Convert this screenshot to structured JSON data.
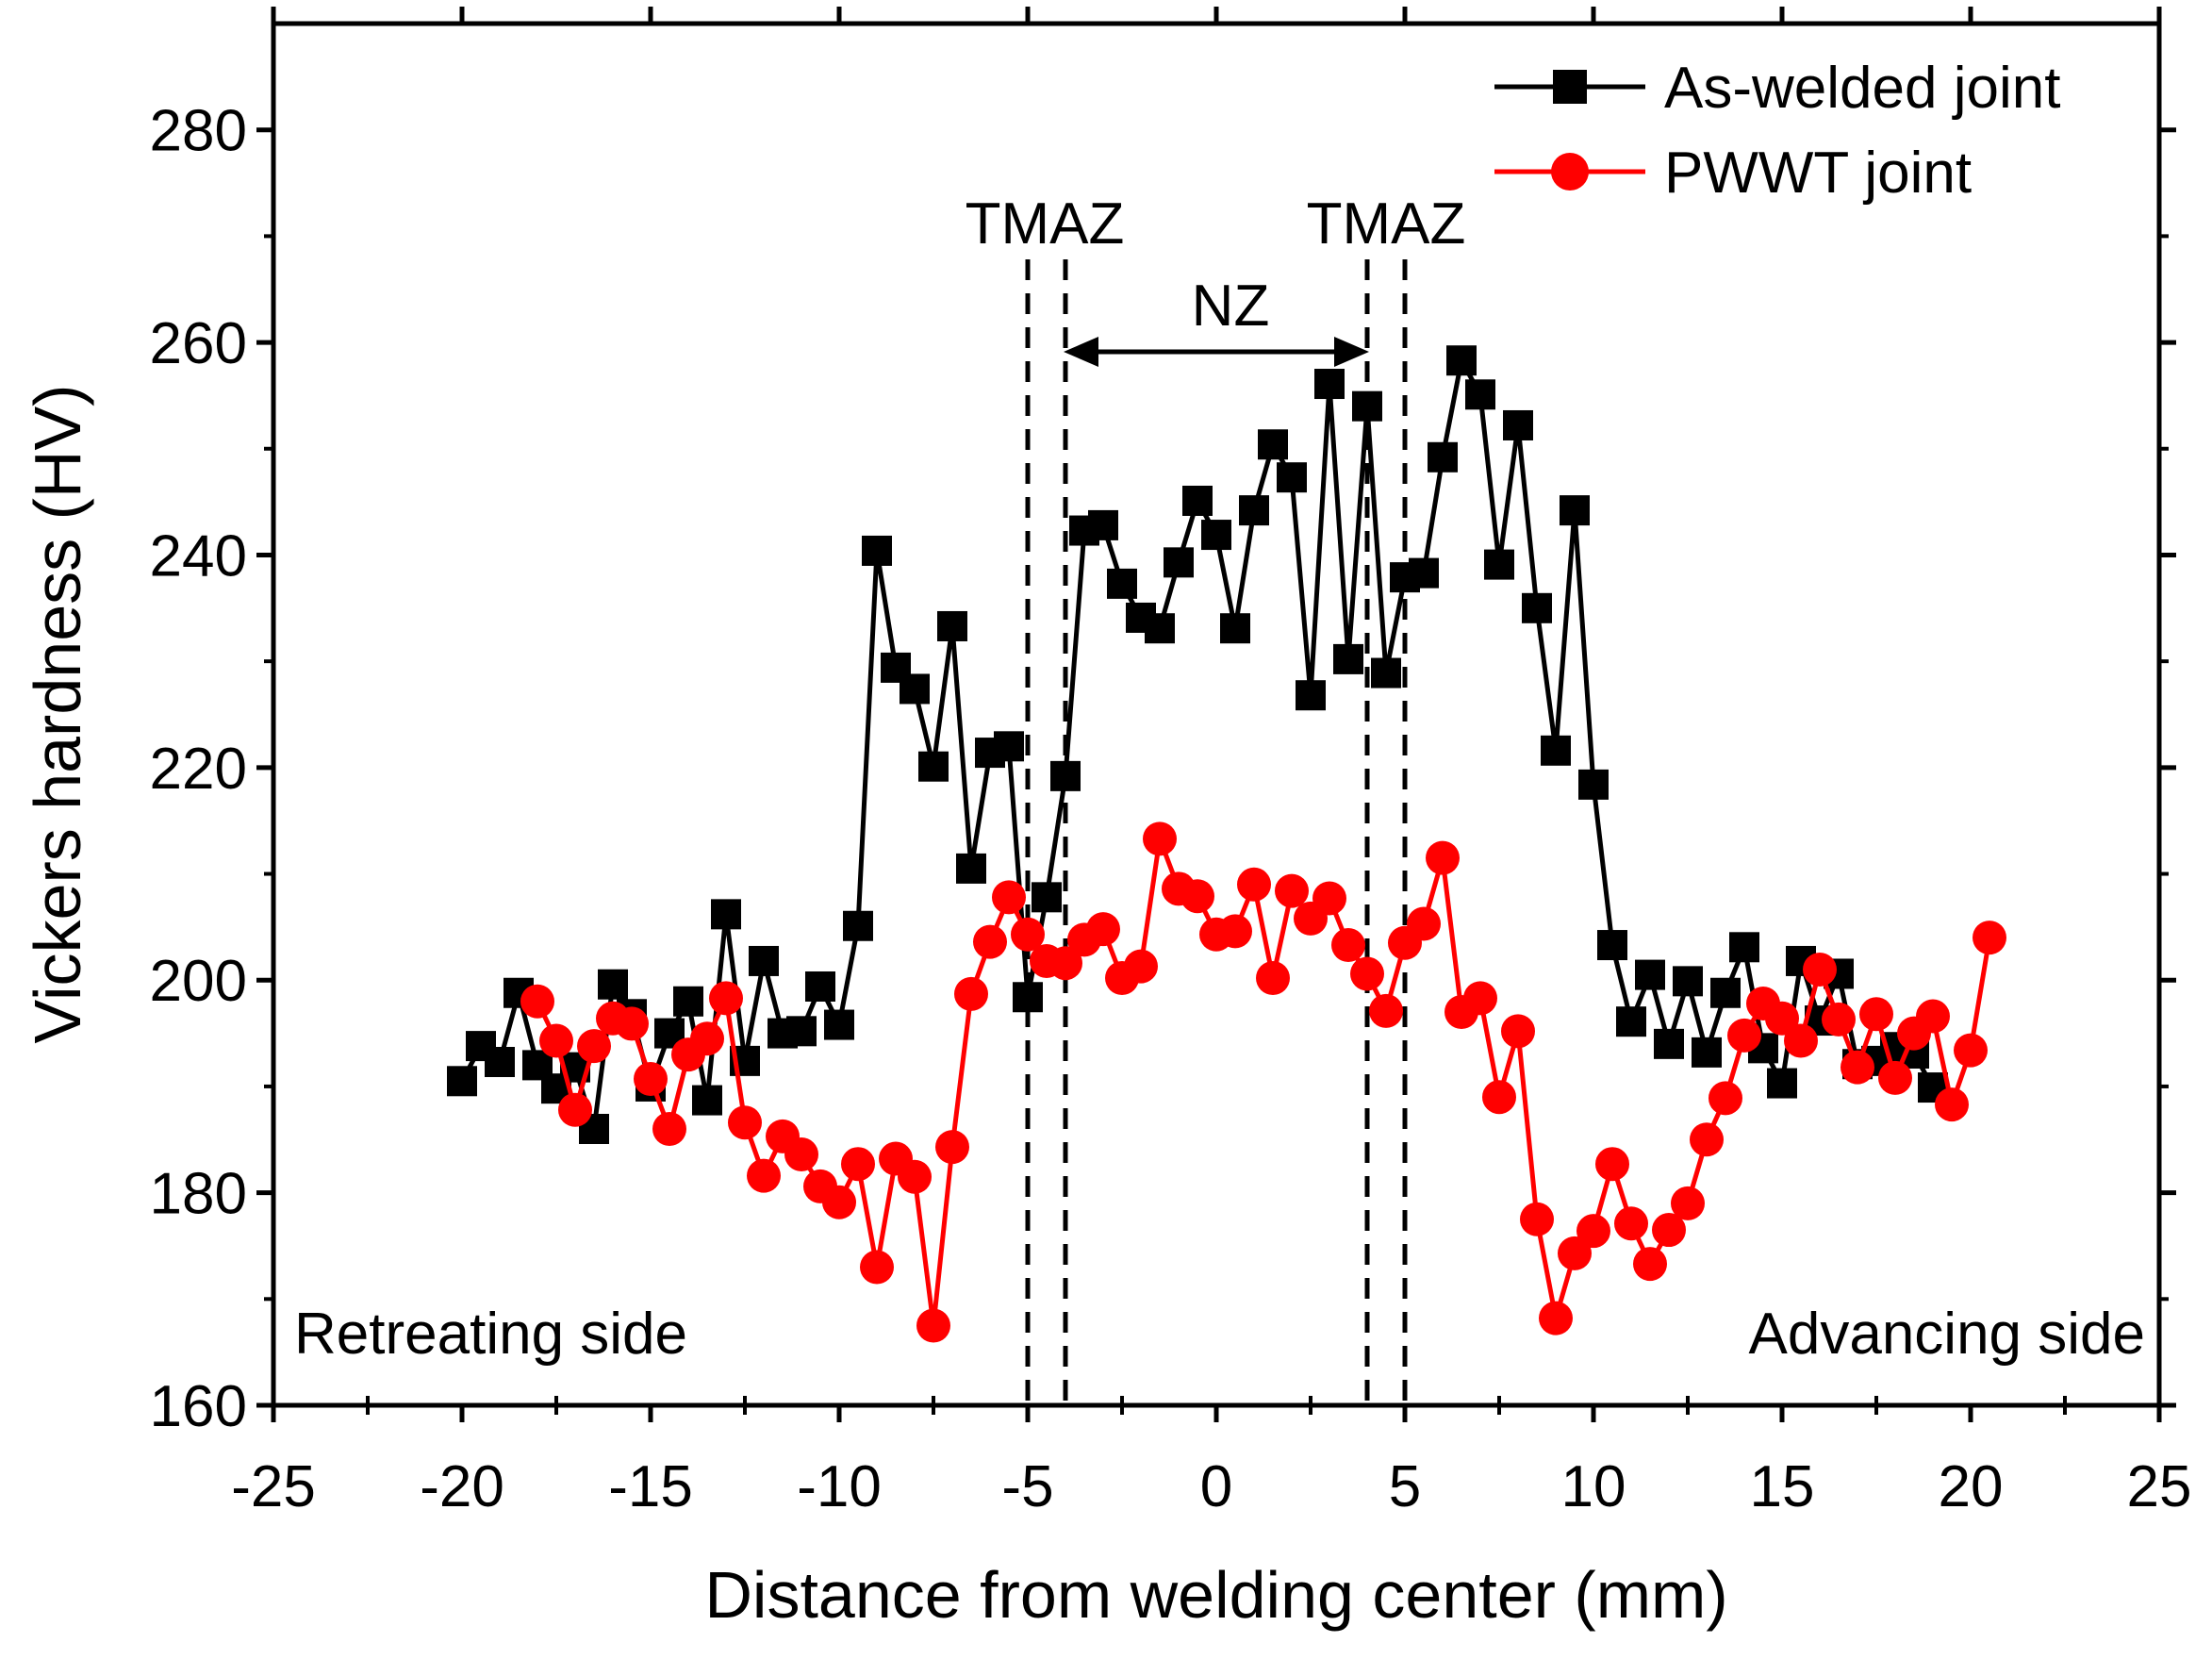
{
  "chart_data": {
    "type": "line",
    "title": "",
    "xlabel": "Distance from welding center (mm)",
    "ylabel": "Vickers hardness (HV)",
    "xlim": [
      -25,
      25
    ],
    "ylim": [
      160,
      290
    ],
    "x_ticks": [
      -25,
      -20,
      -15,
      -10,
      -5,
      0,
      5,
      10,
      15,
      20,
      25
    ],
    "x_tick_labels": [
      "-25",
      "-20",
      "-15",
      "-10",
      "-5",
      "0",
      "5",
      "10",
      "15",
      "20",
      "25"
    ],
    "y_ticks": [
      160,
      180,
      200,
      220,
      240,
      260,
      280
    ],
    "y_tick_labels": [
      "160",
      "180",
      "200",
      "220",
      "240",
      "260",
      "280"
    ],
    "legend_position": "top-right",
    "series": [
      {
        "name": "As-welded joint",
        "color": "#000000",
        "marker": "square",
        "points": [
          [
            -20.0,
            190.5
          ],
          [
            -19.5,
            193.8
          ],
          [
            -19.0,
            192.3
          ],
          [
            -18.5,
            198.8
          ],
          [
            -18.0,
            192.0
          ],
          [
            -17.5,
            189.8
          ],
          [
            -17.0,
            191.8
          ],
          [
            -16.5,
            186.0
          ],
          [
            -16.0,
            199.6
          ],
          [
            -15.5,
            196.8
          ],
          [
            -15.0,
            190.0
          ],
          [
            -14.5,
            195.0
          ],
          [
            -14.0,
            198.0
          ],
          [
            -13.5,
            188.7
          ],
          [
            -13.0,
            206.2
          ],
          [
            -12.5,
            192.4
          ],
          [
            -12.0,
            201.8
          ],
          [
            -11.5,
            195.0
          ],
          [
            -11.0,
            195.2
          ],
          [
            -10.5,
            199.4
          ],
          [
            -10.0,
            195.8
          ],
          [
            -9.5,
            205.1
          ],
          [
            -9.0,
            240.4
          ],
          [
            -8.5,
            229.4
          ],
          [
            -8.0,
            227.4
          ],
          [
            -7.5,
            220.1
          ],
          [
            -7.0,
            233.3
          ],
          [
            -6.5,
            210.5
          ],
          [
            -6.0,
            221.4
          ],
          [
            -5.5,
            222.0
          ],
          [
            -5.0,
            198.4
          ],
          [
            -4.5,
            207.8
          ],
          [
            -4.0,
            219.2
          ],
          [
            -3.5,
            242.3
          ],
          [
            -3.0,
            242.8
          ],
          [
            -2.5,
            237.3
          ],
          [
            -2.0,
            234.1
          ],
          [
            -1.5,
            233.1
          ],
          [
            -1.0,
            239.3
          ],
          [
            -0.5,
            245.1
          ],
          [
            0.0,
            241.9
          ],
          [
            0.5,
            233.1
          ],
          [
            1.0,
            244.2
          ],
          [
            1.5,
            250.4
          ],
          [
            2.0,
            247.3
          ],
          [
            2.5,
            226.8
          ],
          [
            3.0,
            256.1
          ],
          [
            3.5,
            230.2
          ],
          [
            4.0,
            254.0
          ],
          [
            4.5,
            228.9
          ],
          [
            5.0,
            237.9
          ],
          [
            5.5,
            238.3
          ],
          [
            6.0,
            249.2
          ],
          [
            6.5,
            258.3
          ],
          [
            7.0,
            255.1
          ],
          [
            7.5,
            239.1
          ],
          [
            8.0,
            252.2
          ],
          [
            8.5,
            235.0
          ],
          [
            9.0,
            221.6
          ],
          [
            9.5,
            244.2
          ],
          [
            10.0,
            218.4
          ],
          [
            10.5,
            203.3
          ],
          [
            11.0,
            196.1
          ],
          [
            11.5,
            200.5
          ],
          [
            12.0,
            194.0
          ],
          [
            12.5,
            199.9
          ],
          [
            13.0,
            193.2
          ],
          [
            13.5,
            198.8
          ],
          [
            14.0,
            203.1
          ],
          [
            14.5,
            193.6
          ],
          [
            15.0,
            190.3
          ],
          [
            15.5,
            201.8
          ],
          [
            16.0,
            196.2
          ],
          [
            16.5,
            200.6
          ],
          [
            17.0,
            192.1
          ],
          [
            17.5,
            192.4
          ],
          [
            18.0,
            193.7
          ],
          [
            18.5,
            193.1
          ],
          [
            19.0,
            189.9
          ]
        ]
      },
      {
        "name": "PWWT joint",
        "color": "#ff0000",
        "marker": "circle",
        "points": [
          [
            -18.0,
            198.0
          ],
          [
            -17.5,
            194.3
          ],
          [
            -17.0,
            187.8
          ],
          [
            -16.5,
            193.8
          ],
          [
            -16.0,
            196.4
          ],
          [
            -15.5,
            195.9
          ],
          [
            -15.0,
            190.7
          ],
          [
            -14.5,
            186.0
          ],
          [
            -14.0,
            193.0
          ],
          [
            -13.5,
            194.5
          ],
          [
            -13.0,
            198.3
          ],
          [
            -12.5,
            186.6
          ],
          [
            -12.0,
            181.6
          ],
          [
            -11.5,
            185.3
          ],
          [
            -11.0,
            183.6
          ],
          [
            -10.5,
            180.6
          ],
          [
            -10.0,
            179.1
          ],
          [
            -9.5,
            182.7
          ],
          [
            -9.0,
            173.0
          ],
          [
            -8.5,
            183.2
          ],
          [
            -8.0,
            181.5
          ],
          [
            -7.5,
            167.5
          ],
          [
            -7.0,
            184.3
          ],
          [
            -6.5,
            198.7
          ],
          [
            -6.0,
            203.6
          ],
          [
            -5.5,
            207.8
          ],
          [
            -5.0,
            204.3
          ],
          [
            -4.5,
            201.8
          ],
          [
            -4.0,
            201.6
          ],
          [
            -3.5,
            203.8
          ],
          [
            -3.0,
            204.8
          ],
          [
            -2.5,
            200.2
          ],
          [
            -2.0,
            201.3
          ],
          [
            -1.5,
            213.3
          ],
          [
            -1.0,
            208.6
          ],
          [
            -0.5,
            207.9
          ],
          [
            0.0,
            204.3
          ],
          [
            0.5,
            204.6
          ],
          [
            1.0,
            209.0
          ],
          [
            1.5,
            200.2
          ],
          [
            2.0,
            208.4
          ],
          [
            2.5,
            205.8
          ],
          [
            3.0,
            207.7
          ],
          [
            3.5,
            203.3
          ],
          [
            4.0,
            200.6
          ],
          [
            4.5,
            197.1
          ],
          [
            5.0,
            203.5
          ],
          [
            5.5,
            205.3
          ],
          [
            6.0,
            211.5
          ],
          [
            6.5,
            197.0
          ],
          [
            7.0,
            198.3
          ],
          [
            7.5,
            189.0
          ],
          [
            8.0,
            195.2
          ],
          [
            8.5,
            177.5
          ],
          [
            9.0,
            168.2
          ],
          [
            9.5,
            174.3
          ],
          [
            10.0,
            176.4
          ],
          [
            10.5,
            182.7
          ],
          [
            11.0,
            177.1
          ],
          [
            11.5,
            173.3
          ],
          [
            12.0,
            176.5
          ],
          [
            12.5,
            179.0
          ],
          [
            13.0,
            185.0
          ],
          [
            13.5,
            188.9
          ],
          [
            14.0,
            194.8
          ],
          [
            14.5,
            197.8
          ],
          [
            15.0,
            196.4
          ],
          [
            15.5,
            194.3
          ],
          [
            16.0,
            201.0
          ],
          [
            16.5,
            196.3
          ],
          [
            17.0,
            191.8
          ],
          [
            17.5,
            196.8
          ],
          [
            18.0,
            190.8
          ],
          [
            18.5,
            195.0
          ],
          [
            19.0,
            196.6
          ],
          [
            19.5,
            188.3
          ],
          [
            20.0,
            193.4
          ],
          [
            20.5,
            204.0
          ]
        ]
      }
    ],
    "reference_lines_x": [
      -5,
      -4,
      4,
      5
    ],
    "annotations": {
      "tmaz_left": "TMAZ",
      "tmaz_right": "TMAZ",
      "nz": "NZ",
      "retreating": "Retreating side",
      "advancing": "Advancing side"
    }
  }
}
